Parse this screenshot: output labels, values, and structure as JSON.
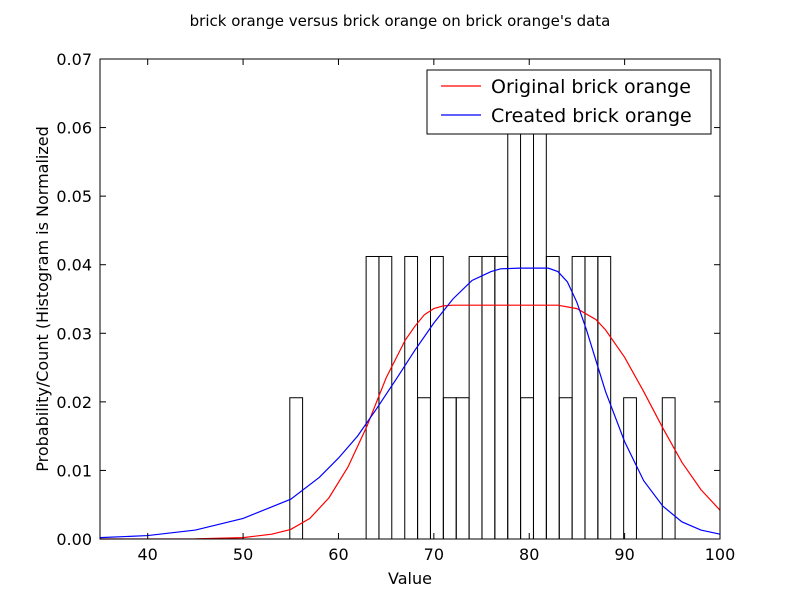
{
  "chart_data": {
    "type": "histogram-with-lines",
    "title": "brick orange versus brick orange on brick orange's data",
    "xlabel": "Value",
    "ylabel": "Probability/Count (Histogram is Normalized",
    "xlim": [
      35,
      100
    ],
    "ylim": [
      0,
      0.07
    ],
    "xticks": [
      40,
      50,
      60,
      70,
      80,
      90,
      100
    ],
    "yticks": [
      0.0,
      0.01,
      0.02,
      0.03,
      0.04,
      0.05,
      0.06,
      0.07
    ],
    "ytick_labels": [
      "0.00",
      "0.01",
      "0.02",
      "0.03",
      "0.04",
      "0.05",
      "0.06",
      "0.07"
    ],
    "histogram": {
      "bin_width": 1.34,
      "bins": [
        {
          "x0": 54.9,
          "value": 0.0206
        },
        {
          "x0": 62.9,
          "value": 0.0412
        },
        {
          "x0": 64.25,
          "value": 0.0412
        },
        {
          "x0": 66.95,
          "value": 0.0412
        },
        {
          "x0": 68.3,
          "value": 0.0206
        },
        {
          "x0": 69.65,
          "value": 0.0412
        },
        {
          "x0": 71.0,
          "value": 0.0206
        },
        {
          "x0": 72.35,
          "value": 0.0206
        },
        {
          "x0": 73.7,
          "value": 0.0412
        },
        {
          "x0": 75.05,
          "value": 0.0412
        },
        {
          "x0": 76.4,
          "value": 0.0412
        },
        {
          "x0": 77.75,
          "value": 0.0619
        },
        {
          "x0": 79.1,
          "value": 0.0206
        },
        {
          "x0": 80.45,
          "value": 0.0619
        },
        {
          "x0": 81.8,
          "value": 0.0412
        },
        {
          "x0": 83.15,
          "value": 0.0206
        },
        {
          "x0": 84.5,
          "value": 0.0412
        },
        {
          "x0": 85.85,
          "value": 0.0412
        },
        {
          "x0": 87.2,
          "value": 0.0412
        },
        {
          "x0": 89.9,
          "value": 0.0206
        },
        {
          "x0": 93.95,
          "value": 0.0206
        }
      ]
    },
    "series": [
      {
        "name": "Original brick orange",
        "color": "#ff0000",
        "points": [
          [
            35,
            0.0
          ],
          [
            45,
            2e-05
          ],
          [
            50,
            0.0002
          ],
          [
            53,
            0.0007
          ],
          [
            55,
            0.0014
          ],
          [
            57,
            0.003
          ],
          [
            59,
            0.006
          ],
          [
            61,
            0.0105
          ],
          [
            63,
            0.0165
          ],
          [
            65,
            0.0235
          ],
          [
            67,
            0.029
          ],
          [
            68,
            0.031
          ],
          [
            69,
            0.0327
          ],
          [
            70,
            0.0336
          ],
          [
            71,
            0.034
          ],
          [
            72,
            0.0341
          ],
          [
            75,
            0.0341
          ],
          [
            80,
            0.0341
          ],
          [
            83,
            0.0341
          ],
          [
            85,
            0.0336
          ],
          [
            87,
            0.032
          ],
          [
            88,
            0.0305
          ],
          [
            90,
            0.0265
          ],
          [
            92,
            0.0215
          ],
          [
            94,
            0.0162
          ],
          [
            96,
            0.0112
          ],
          [
            98,
            0.0072
          ],
          [
            100,
            0.0042
          ]
        ]
      },
      {
        "name": "Created brick orange",
        "color": "#0000ff",
        "points": [
          [
            35,
            0.0002
          ],
          [
            40,
            0.0005
          ],
          [
            45,
            0.0013
          ],
          [
            50,
            0.003
          ],
          [
            55,
            0.0058
          ],
          [
            58,
            0.009
          ],
          [
            60,
            0.0118
          ],
          [
            62,
            0.015
          ],
          [
            64,
            0.019
          ],
          [
            66,
            0.0232
          ],
          [
            68,
            0.0275
          ],
          [
            70,
            0.0315
          ],
          [
            72,
            0.035
          ],
          [
            74,
            0.0377
          ],
          [
            76,
            0.039
          ],
          [
            77,
            0.0394
          ],
          [
            79,
            0.0395
          ],
          [
            82,
            0.0395
          ],
          [
            83,
            0.039
          ],
          [
            84,
            0.0375
          ],
          [
            85,
            0.0345
          ],
          [
            86,
            0.0305
          ],
          [
            87,
            0.026
          ],
          [
            88,
            0.0215
          ],
          [
            90,
            0.0142
          ],
          [
            92,
            0.0085
          ],
          [
            94,
            0.0048
          ],
          [
            96,
            0.0025
          ],
          [
            98,
            0.0013
          ],
          [
            100,
            0.0007
          ]
        ]
      }
    ],
    "legend": {
      "position": "top-right"
    }
  }
}
